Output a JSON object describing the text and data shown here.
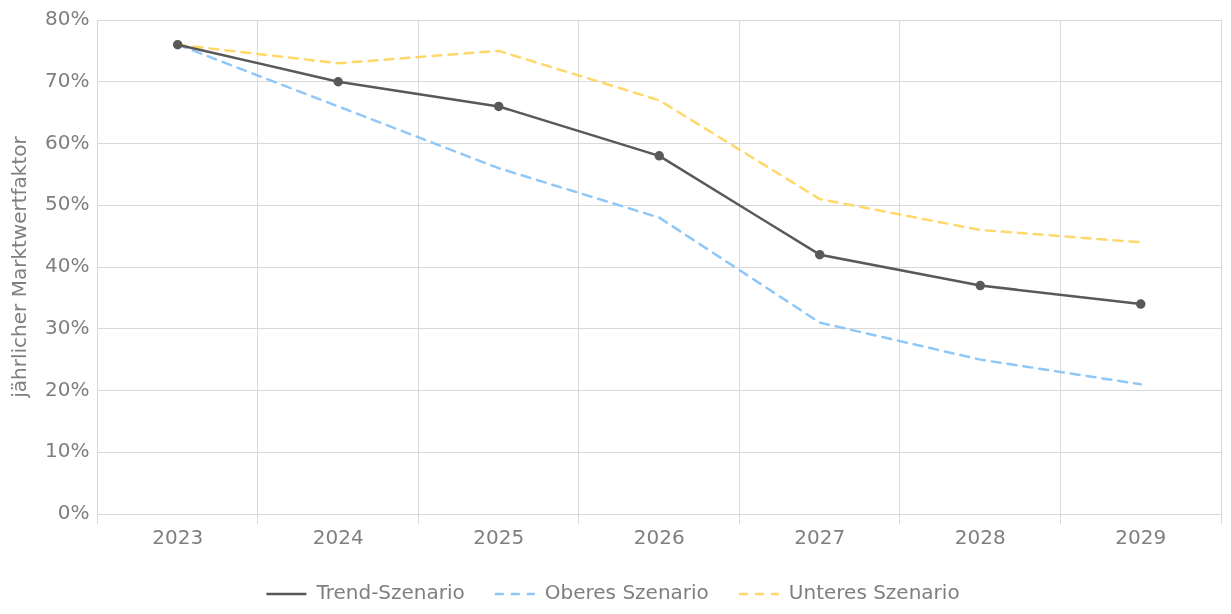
{
  "chart_data": {
    "type": "line",
    "ylabel": "jährlicher Marktwertfaktor",
    "categories": [
      "2023",
      "2024",
      "2025",
      "2026",
      "2027",
      "2028",
      "2029"
    ],
    "series": [
      {
        "name": "Trend-Szenario",
        "color": "#595959",
        "marker": "circle",
        "line_style": "solid",
        "values": [
          76,
          70,
          66,
          58,
          42,
          37,
          34
        ]
      },
      {
        "name": "Oberes Szenario",
        "color": "#8fc8f8",
        "marker": "none",
        "line_style": "dashed",
        "values": [
          76,
          66,
          56,
          48,
          31,
          25,
          21
        ]
      },
      {
        "name": "Unteres Szenario",
        "color": "#ffd86b",
        "marker": "none",
        "line_style": "dashed",
        "values": [
          76,
          73,
          75,
          67,
          51,
          46,
          44
        ]
      }
    ],
    "ylim": [
      0,
      80
    ],
    "yticks": [
      {
        "value": 0,
        "label": "0%"
      },
      {
        "value": 10,
        "label": "10%"
      },
      {
        "value": 20,
        "label": "20%"
      },
      {
        "value": 30,
        "label": "30%"
      },
      {
        "value": 40,
        "label": "40%"
      },
      {
        "value": 50,
        "label": "50%"
      },
      {
        "value": 60,
        "label": "60%"
      },
      {
        "value": 70,
        "label": "70%"
      },
      {
        "value": 80,
        "label": "80%"
      }
    ],
    "grid": true,
    "legend": "bottom"
  }
}
